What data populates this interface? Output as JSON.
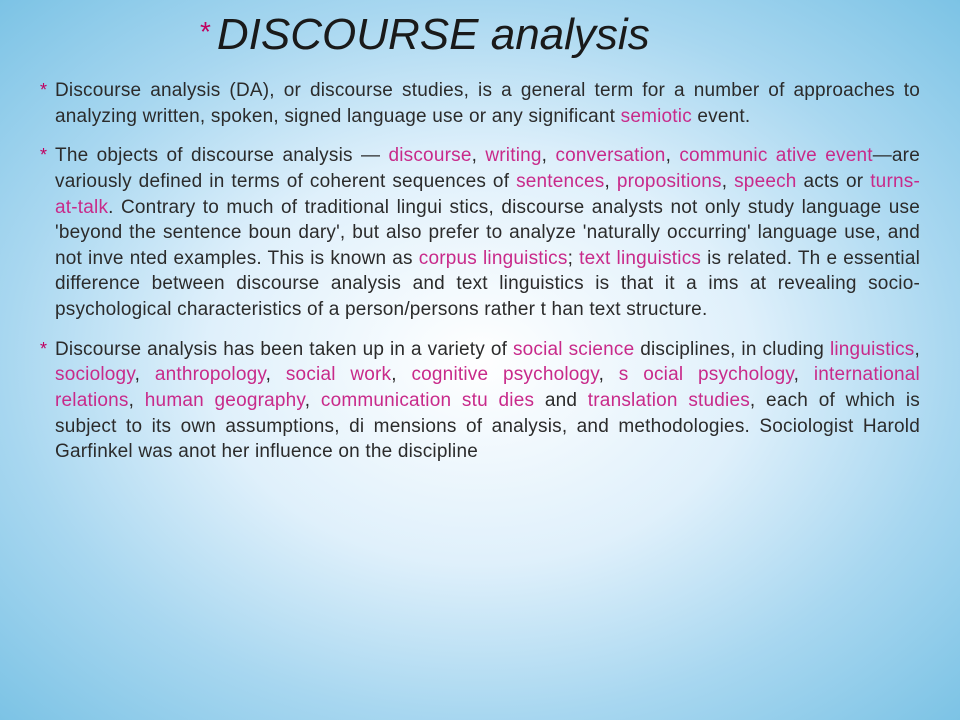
{
  "title_html": "<span class='caps'>DISCOURSE</span> analysis",
  "title_color": "#1a1a1a",
  "title_fontsize": 44,
  "bullet_color": "#c00060",
  "highlight_color": "#c82a8a",
  "body_fontsize": 19,
  "background_gradient": [
    "#ffffff",
    "#dff0fb",
    "#a8d7f0",
    "#7cc3e5"
  ],
  "bullets": [
    "Discourse analysis (DA), or discourse studies, is a general term for a number of approaches to analyzing written, spoken, signed language use or any significant <span class='hl'>semiotic</span> event.",
    "The objects of discourse analysis — <span class='hl'>discourse</span>, <span class='hl'>writing</span>, <span class='hl'>conversation</span>, <span class='hl'>communic ative event</span>—are variously defined in terms of coherent sequences of <span class='hl'>sentences</span>, <span class='hl'>propositions</span>, <span class='hl'>speech</span> acts or <span class='hl'>turns-at-talk</span>. Contrary to much of traditional lingui stics, discourse analysts not only study language use 'beyond the sentence boun dary', but also prefer to analyze 'naturally occurring' language use, and not inve nted examples. This is known as <span class='hl'>corpus linguistics</span>; <span class='hl'>text linguistics</span> is related. Th e essential difference between discourse analysis and text linguistics is that it a ims at revealing socio-psychological characteristics of a person/persons rather t han text structure.",
    "Discourse analysis has been taken up in a variety of <span class='hl'>social science</span> disciplines, in cluding <span class='hl'>linguistics</span>, <span class='hl'>sociology</span>, <span class='hl'>anthropology</span>, <span class='hl'>social work</span>, <span class='hl'>cognitive psychology</span>, <span class='hl'>s ocial psychology</span>, <span class='hl'>international relations</span>, <span class='hl'>human geography</span>, <span class='hl'>communication stu dies</span> and <span class='hl'>translation studies</span>, each of which is subject to its own assumptions, di mensions of analysis, and methodologies. Sociologist Harold Garfinkel was anot her influence on the discipline"
  ]
}
